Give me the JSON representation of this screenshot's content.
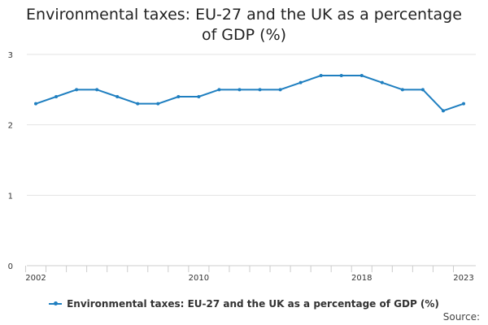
{
  "chart_data": {
    "type": "line",
    "title": "Environmental taxes: EU-27 and the UK as a percentage of GDP (%)",
    "xlabel": "",
    "ylabel": "",
    "x": [
      2002,
      2003,
      2004,
      2005,
      2006,
      2007,
      2008,
      2009,
      2010,
      2011,
      2012,
      2013,
      2014,
      2015,
      2016,
      2017,
      2018,
      2019,
      2020,
      2021,
      2022,
      2023
    ],
    "xlim": [
      2002,
      2023
    ],
    "ylim": [
      0,
      3
    ],
    "x_tick_labels": [
      "2002",
      "2010",
      "2018",
      "2023"
    ],
    "y_ticks": [
      0,
      1,
      2,
      3
    ],
    "grid": true,
    "legend_position": "bottom-center",
    "series": [
      {
        "name": "Environmental taxes: EU-27 and the UK as a percentage of GDP (%)",
        "values": [
          2.3,
          2.4,
          2.5,
          2.5,
          2.4,
          2.3,
          2.3,
          2.4,
          2.4,
          2.5,
          2.5,
          2.5,
          2.5,
          2.6,
          2.7,
          2.7,
          2.7,
          2.6,
          2.5,
          2.5,
          2.2,
          2.3
        ],
        "color": "#1f7fc0"
      }
    ],
    "source_label": "Source:"
  }
}
